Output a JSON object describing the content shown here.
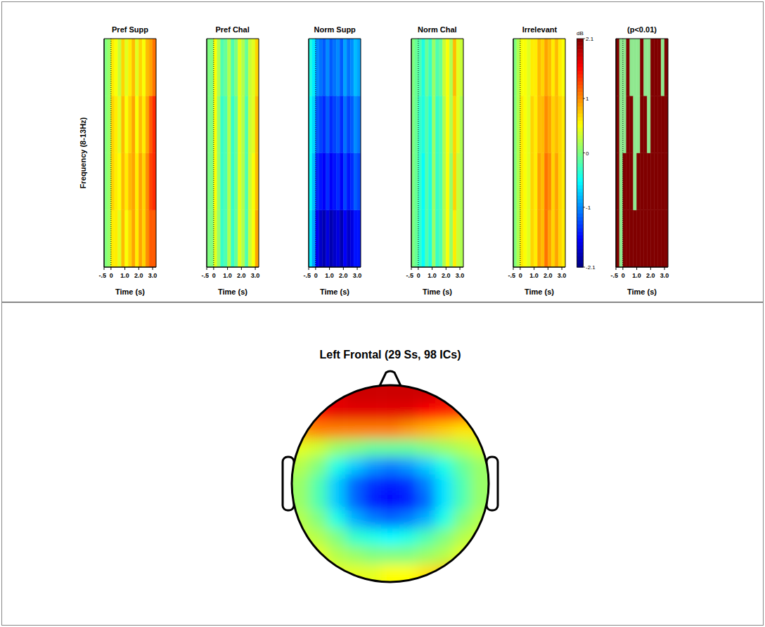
{
  "chart_data": {
    "type": "heatmap",
    "x_label": "Time (s)",
    "y_label": "Frequency (8-13Hz)",
    "xlim": [
      -0.5,
      3.25
    ],
    "xticks": [
      {
        "value": -0.5,
        "label": "-.5"
      },
      0,
      {
        "value": 1,
        "label": "1.0"
      },
      {
        "value": 2,
        "label": "2.0"
      },
      {
        "value": 3,
        "label": "3.0"
      }
    ],
    "ylim": [
      8,
      13
    ],
    "tick_labels": "x",
    "time_bins": [
      -0.5,
      -0.25,
      0,
      0.25,
      0.5,
      0.75,
      1,
      1.25,
      1.5,
      1.75,
      2,
      2.25,
      2.5,
      2.75,
      3,
      3.25
    ],
    "freq_bins": [
      8,
      9.25,
      10.5,
      11.75,
      13
    ],
    "event_line": 0,
    "colorbar": {
      "label": "dB",
      "range": [
        -2.1,
        2.1
      ],
      "ticks": [
        2.1,
        1,
        0,
        -1,
        -2.1
      ]
    },
    "panels": [
      {
        "type": "heatmap",
        "title": "Pref Supp",
        "cells": [
          [
            0,
            0.1,
            0.6,
            0.6,
            0.4,
            0.8,
            0.5,
            0.7,
            0.9,
            0.6,
            0.9,
            0.7,
            1.0,
            1.2,
            1.2
          ],
          [
            0,
            0.1,
            0.7,
            0.6,
            0.5,
            0.8,
            0.6,
            0.8,
            0.9,
            0.6,
            0.9,
            0.7,
            1.0,
            1.3,
            1.4
          ],
          [
            0,
            0.1,
            0.7,
            0.6,
            0.4,
            0.8,
            0.5,
            0.7,
            0.9,
            0.5,
            0.8,
            0.6,
            0.9,
            1.2,
            1.4
          ],
          [
            0,
            0.1,
            0.6,
            0.5,
            0.3,
            0.7,
            0.4,
            0.6,
            0.8,
            0.4,
            0.7,
            0.5,
            0.8,
            0.9,
            1.1
          ]
        ]
      },
      {
        "type": "heatmap",
        "title": "Pref Chal",
        "cells": [
          [
            0,
            0,
            0.4,
            0.1,
            -0.3,
            -0.2,
            0.2,
            -0.3,
            -0.1,
            0.4,
            0.2,
            -0.2,
            0.3,
            0.5,
            0.9
          ],
          [
            0,
            0,
            0.5,
            0.1,
            -0.3,
            -0.2,
            0.2,
            -0.3,
            -0.1,
            0.4,
            0.2,
            -0.2,
            0.3,
            0.5,
            0.8
          ],
          [
            0,
            0,
            0.5,
            0.1,
            -0.3,
            -0.2,
            0.2,
            -0.3,
            -0.1,
            0.4,
            0.2,
            -0.2,
            0.3,
            0.4,
            0.8
          ],
          [
            0,
            0,
            0.5,
            0.2,
            -0.2,
            -0.1,
            0.2,
            -0.2,
            0,
            0.4,
            0.2,
            -0.1,
            0.3,
            0.4,
            0.7
          ]
        ]
      },
      {
        "type": "heatmap",
        "title": "Norm Supp",
        "cells": [
          [
            -0.6,
            -0.9,
            -1.6,
            -1.8,
            -1.9,
            -1.7,
            -1.9,
            -1.8,
            -1.7,
            -1.9,
            -1.6,
            -1.8,
            -1.7,
            -1.5,
            -1.5
          ],
          [
            -0.5,
            -0.8,
            -1.4,
            -1.5,
            -1.6,
            -1.4,
            -1.6,
            -1.5,
            -1.4,
            -1.6,
            -1.3,
            -1.5,
            -1.4,
            -1.2,
            -1.3
          ],
          [
            -0.5,
            -0.7,
            -1.2,
            -1.3,
            -1.4,
            -1.2,
            -1.4,
            -1.3,
            -1.2,
            -1.4,
            -1.1,
            -1.3,
            -1.2,
            -1.0,
            -1.1
          ],
          [
            -0.4,
            -0.6,
            -1.0,
            -1.1,
            -1.2,
            -1.0,
            -1.2,
            -1.1,
            -1.0,
            -1.2,
            -0.9,
            -1.1,
            -1.0,
            -0.8,
            -0.9
          ]
        ]
      },
      {
        "type": "heatmap",
        "title": "Norm Chal",
        "cells": [
          [
            0,
            -0.1,
            -0.3,
            -0.5,
            -0.2,
            -0.4,
            0.1,
            -0.3,
            -0.2,
            0.2,
            0.5,
            0.1,
            0.6,
            0.3,
            0.2
          ],
          [
            0,
            -0.1,
            -0.3,
            -0.5,
            -0.2,
            -0.4,
            0.1,
            -0.3,
            -0.2,
            0.2,
            0.5,
            0.1,
            0.7,
            0.3,
            0.2
          ],
          [
            0,
            -0.1,
            -0.3,
            -0.4,
            -0.2,
            -0.4,
            0.1,
            -0.3,
            -0.2,
            0.2,
            0.5,
            0.2,
            0.7,
            0.4,
            0.2
          ],
          [
            0,
            -0.1,
            -0.2,
            -0.4,
            -0.1,
            -0.3,
            0.1,
            -0.2,
            -0.1,
            0.3,
            0.5,
            0.2,
            0.8,
            0.4,
            0.3
          ]
        ]
      },
      {
        "type": "heatmap",
        "title": "Irrelevant",
        "cells": [
          [
            0,
            0.2,
            0.6,
            0.5,
            0.4,
            0.7,
            0.6,
            0.9,
            0.8,
            1.1,
            0.9,
            0.7,
            0.9,
            0.7,
            0.6
          ],
          [
            0,
            0.2,
            0.6,
            0.5,
            0.4,
            0.7,
            0.6,
            0.9,
            0.8,
            1.1,
            1.0,
            0.7,
            0.9,
            0.7,
            0.6
          ],
          [
            0,
            0.2,
            0.6,
            0.5,
            0.4,
            0.7,
            0.6,
            0.8,
            0.8,
            1.0,
            0.9,
            0.7,
            0.8,
            0.7,
            0.6
          ],
          [
            0,
            0.2,
            0.5,
            0.5,
            0.4,
            0.6,
            0.6,
            0.8,
            0.7,
            0.9,
            0.8,
            0.6,
            0.8,
            0.6,
            0.5
          ]
        ]
      },
      {
        "type": "mask",
        "title": "(p<0.01)",
        "cells": [
          [
            1,
            0,
            1,
            1,
            1,
            1,
            1,
            1,
            1,
            1,
            1,
            1,
            1,
            1,
            1
          ],
          [
            1,
            0,
            1,
            1,
            1,
            0,
            1,
            1,
            1,
            1,
            1,
            1,
            1,
            1,
            1
          ],
          [
            1,
            0,
            0,
            1,
            1,
            0,
            0,
            1,
            1,
            0,
            1,
            1,
            1,
            1,
            1
          ],
          [
            1,
            0,
            0,
            1,
            0,
            0,
            0,
            1,
            0,
            0,
            1,
            1,
            1,
            0,
            1
          ]
        ]
      }
    ]
  },
  "topography": {
    "type": "topography",
    "title": "Left Frontal (29 Ss, 98 ICs)",
    "clim": [
      -1,
      1
    ],
    "cells": [
      [
        0.8,
        0.8,
        0.8,
        0.85,
        0.85,
        0.85,
        0.85,
        0.85,
        0.8,
        0.8,
        0.8
      ],
      [
        0.7,
        0.75,
        0.8,
        0.8,
        0.8,
        0.8,
        0.8,
        0.75,
        0.7,
        0.65,
        0.6
      ],
      [
        0.45,
        0.5,
        0.5,
        0.5,
        0.5,
        0.5,
        0.45,
        0.4,
        0.35,
        0.3,
        0.3
      ],
      [
        0.2,
        0.15,
        0.05,
        0,
        -0.05,
        -0.05,
        -0.05,
        0,
        0.05,
        0.1,
        0.15
      ],
      [
        0.1,
        0,
        -0.2,
        -0.35,
        -0.45,
        -0.5,
        -0.45,
        -0.35,
        -0.2,
        -0.05,
        0.05
      ],
      [
        0.05,
        -0.1,
        -0.35,
        -0.55,
        -0.65,
        -0.7,
        -0.65,
        -0.5,
        -0.3,
        -0.1,
        0.05
      ],
      [
        0.05,
        -0.1,
        -0.35,
        -0.55,
        -0.7,
        -0.75,
        -0.7,
        -0.55,
        -0.3,
        -0.1,
        0.05
      ],
      [
        0.1,
        0,
        -0.2,
        -0.4,
        -0.5,
        -0.55,
        -0.5,
        -0.4,
        -0.2,
        0,
        0.1
      ],
      [
        0.15,
        0.1,
        0,
        -0.15,
        -0.2,
        -0.25,
        -0.2,
        -0.1,
        0,
        0.1,
        0.15
      ],
      [
        0.2,
        0.2,
        0.1,
        0.05,
        0,
        0,
        0,
        0.05,
        0.1,
        0.2,
        0.25
      ],
      [
        0.25,
        0.25,
        0.2,
        0.2,
        0.2,
        0.25,
        0.25,
        0.3,
        0.35,
        0.4,
        0.4
      ]
    ]
  }
}
